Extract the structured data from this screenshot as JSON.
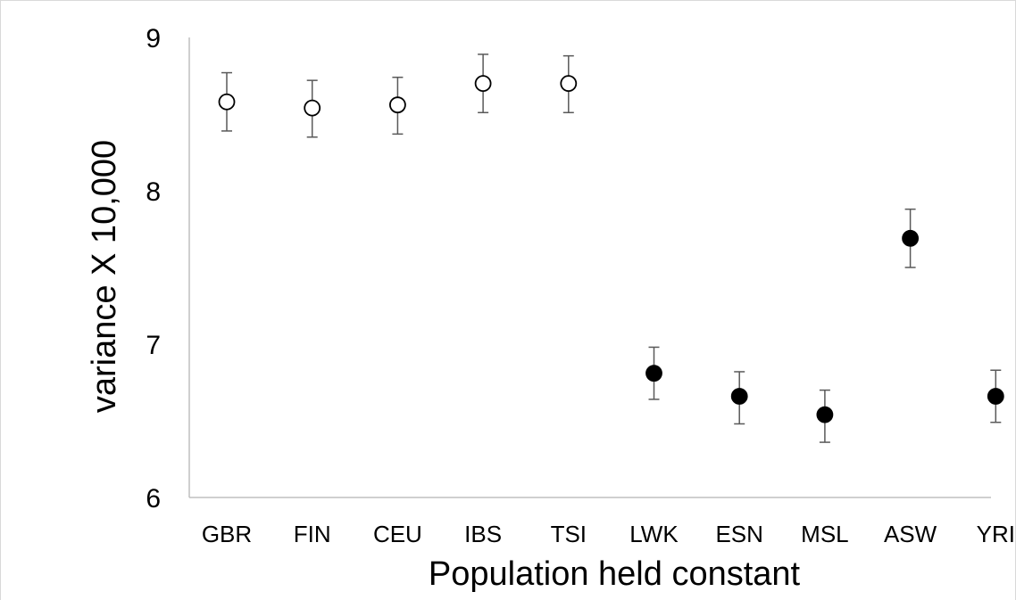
{
  "chart_data": {
    "type": "scatter",
    "xlabel": "Population held constant",
    "ylabel": "variance  X 10,000",
    "ylim": [
      6,
      9
    ],
    "yticks": [
      6,
      7,
      8,
      9
    ],
    "grid": false,
    "categories": [
      "GBR",
      "FIN",
      "CEU",
      "IBS",
      "TSI",
      "LWK",
      "ESN",
      "MSL",
      "ASW",
      "YRI"
    ],
    "values": [
      8.58,
      8.54,
      8.56,
      8.7,
      8.7,
      6.81,
      6.66,
      6.54,
      7.69,
      6.66
    ],
    "error_low": [
      8.39,
      8.35,
      8.37,
      8.51,
      8.51,
      6.64,
      6.48,
      6.36,
      7.5,
      6.49
    ],
    "error_high": [
      8.77,
      8.72,
      8.74,
      8.89,
      8.88,
      6.98,
      6.82,
      6.7,
      7.88,
      6.83
    ],
    "marker_fill": [
      "open",
      "open",
      "open",
      "open",
      "open",
      "filled",
      "filled",
      "filled",
      "filled",
      "filled"
    ],
    "colors": {
      "marker": "#000000",
      "error_bar": "#595959",
      "axis": "#bfbfbf",
      "frame": "#d9d9d9"
    }
  }
}
